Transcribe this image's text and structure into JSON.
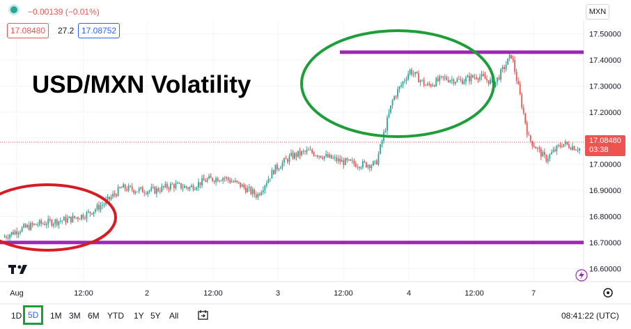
{
  "header": {
    "change": "−0.00139 (−0.01%)",
    "bid": "17.08480",
    "spread": "27.2",
    "ask": "17.08752",
    "symbol_badge": "MXN"
  },
  "colors": {
    "up": "#26a69a",
    "down": "#ef5350",
    "purple_line": "#9c27b0",
    "green_ellipse": "#1e9e38",
    "red_ellipse": "#d81b22",
    "price_label_bg": "#ef5350"
  },
  "chart_data": {
    "type": "line",
    "title": "USD/MXN Volatility",
    "xlabel": "",
    "ylabel": "",
    "ylim": [
      16.55,
      17.55
    ],
    "y_ticks": [
      "17.50000",
      "17.40000",
      "17.30000",
      "17.20000",
      "17.10000",
      "17.00000",
      "16.90000",
      "16.80000",
      "16.70000",
      "16.60000"
    ],
    "x_tick_labels": [
      "Aug",
      "12:00",
      "2",
      "12:00",
      "3",
      "12:00",
      "4",
      "12:00",
      "7"
    ],
    "last_price": "17.08480",
    "countdown": "03:38",
    "series": [
      {
        "x": [
          0,
          3,
          6,
          9,
          12,
          15,
          18,
          21,
          24,
          27,
          30,
          33,
          36,
          39,
          42,
          45,
          48,
          51,
          54,
          57,
          60,
          63,
          66,
          69,
          72,
          75,
          78,
          81,
          84,
          87,
          90,
          93,
          96,
          99,
          102
        ],
        "values": [
          16.72,
          16.75,
          16.77,
          16.78,
          16.79,
          16.81,
          16.85,
          16.91,
          16.9,
          16.9,
          16.92,
          16.91,
          16.94,
          16.95,
          16.92,
          16.88,
          16.98,
          17.03,
          17.05,
          17.03,
          17.01,
          17.0,
          17.0,
          17.25,
          17.36,
          17.3,
          17.33,
          17.32,
          17.34,
          17.31,
          17.42,
          17.1,
          17.02,
          17.08,
          17.06
        ]
      }
    ],
    "annotations": {
      "resistance": 17.43,
      "support": 16.7
    }
  },
  "toolbar": {
    "timeframes": [
      "1D",
      "5D",
      "1M",
      "3M",
      "6M",
      "YTD",
      "1Y",
      "5Y",
      "All"
    ],
    "selected_timeframe": "5D",
    "clock": "08:41:22 (UTC)"
  }
}
